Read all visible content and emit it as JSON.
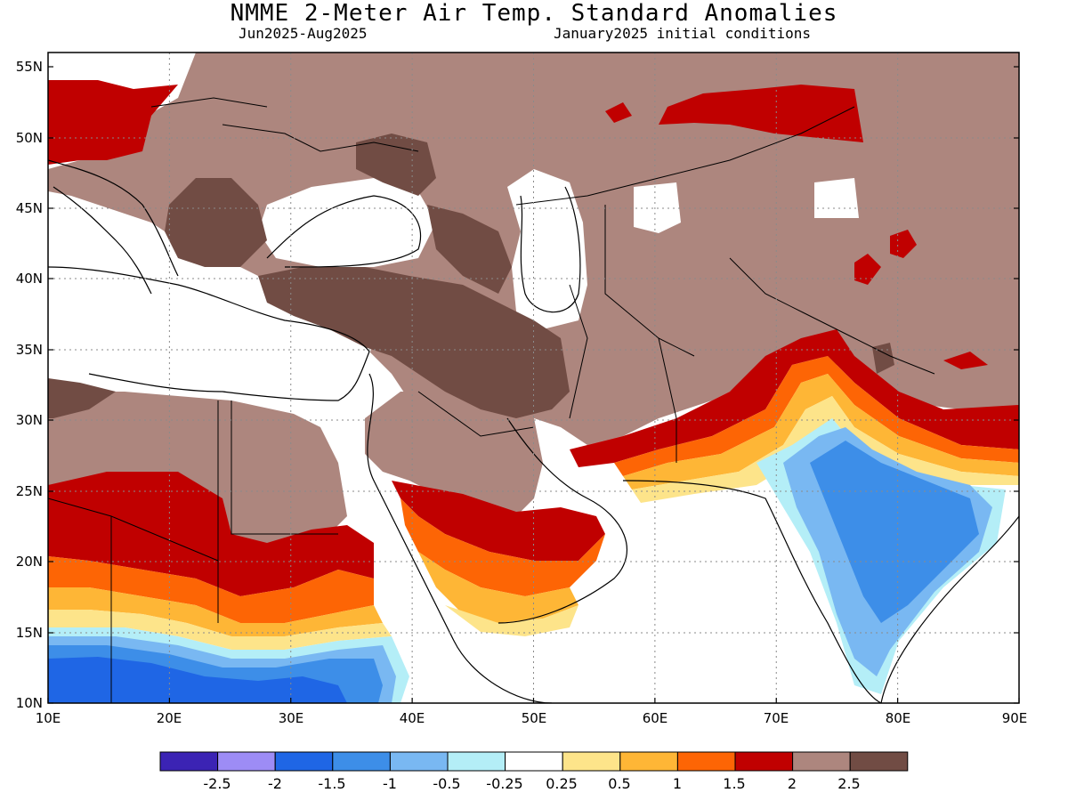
{
  "header": {
    "title": "NMME 2-Meter Air Temp. Standard Anomalies",
    "period": "Jun2025-Aug2025",
    "init": "January2025 initial conditions"
  },
  "axes": {
    "lon_labels": [
      "10E",
      "20E",
      "30E",
      "40E",
      "50E",
      "60E",
      "70E",
      "80E",
      "90E"
    ],
    "lat_labels": [
      "55N",
      "50N",
      "45N",
      "40N",
      "35N",
      "30N",
      "25N",
      "20N",
      "15N",
      "10N"
    ]
  },
  "colorbar": {
    "colors": [
      "#3b23b4",
      "#9d8cf5",
      "#1f66e5",
      "#3d8ee8",
      "#79b8f2",
      "#b4eef7",
      "#ffffff",
      "#fde48a",
      "#feb636",
      "#fd6505",
      "#c00000",
      "#ad867e",
      "#714c44"
    ],
    "labels": [
      "-2.5",
      "-2",
      "-1.5",
      "-1",
      "-0.5",
      "-0.25",
      "0.25",
      "0.5",
      "1",
      "1.5",
      "2",
      "2.5"
    ]
  },
  "regions": {
    "brown": "#ad867e",
    "dark_brown": "#714c44",
    "dark_red": "#c00000",
    "orange": "#fd6505",
    "light_orange": "#feb636",
    "yellow": "#fde48a",
    "cyan": "#b4eef7",
    "light_blue": "#79b8f2",
    "blue": "#3d8ee8",
    "deep_blue": "#1f66e5"
  }
}
